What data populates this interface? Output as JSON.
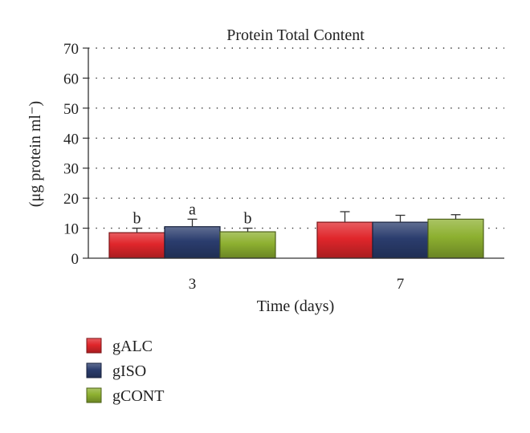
{
  "chart_data": {
    "type": "bar",
    "title": "Protein Total Content",
    "xlabel": "Time (days)",
    "ylabel": "(μg protein ml⁻)",
    "categories": [
      "3",
      "7"
    ],
    "ylim": [
      0,
      70
    ],
    "yticks": [
      0,
      10,
      20,
      30,
      40,
      50,
      60,
      70
    ],
    "grid": "dotted horizontal",
    "legend": "bottom-left",
    "series": [
      {
        "name": "gALC",
        "color": "#e0262b",
        "values": [
          8.5,
          12.0
        ],
        "errors": [
          1.5,
          3.5
        ],
        "labels": [
          "b",
          ""
        ]
      },
      {
        "name": "gISO",
        "color": "#2b3d6e",
        "values": [
          10.5,
          12.0
        ],
        "errors": [
          2.5,
          2.3
        ],
        "labels": [
          "a",
          ""
        ]
      },
      {
        "name": "gCONT",
        "color": "#8db030",
        "values": [
          8.8,
          13.0
        ],
        "errors": [
          1.2,
          1.5
        ],
        "labels": [
          "b",
          ""
        ]
      }
    ]
  }
}
